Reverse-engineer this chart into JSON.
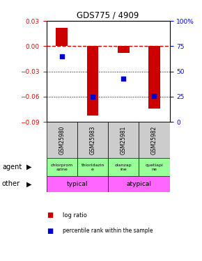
{
  "title": "GDS775 / 4909",
  "samples": [
    "GSM25980",
    "GSM25983",
    "GSM25981",
    "GSM25982"
  ],
  "log_ratios": [
    0.022,
    -0.082,
    -0.008,
    -0.074
  ],
  "percentile_ranks": [
    65,
    25,
    43,
    26
  ],
  "left_ylim": [
    -0.09,
    0.03
  ],
  "right_ylim": [
    0,
    100
  ],
  "left_yticks": [
    -0.09,
    -0.06,
    -0.03,
    0,
    0.03
  ],
  "right_yticks": [
    0,
    25,
    50,
    75,
    100
  ],
  "right_yticklabels": [
    "0",
    "25",
    "50",
    "75",
    "100%"
  ],
  "agent_labels": [
    "chlorprom\nazine",
    "thioridazin\ne",
    "olanzap\nine",
    "quetiapi\nne"
  ],
  "agent_bg": "#99ff99",
  "other_groups": [
    {
      "label": "typical",
      "span": [
        0,
        2
      ],
      "color": "#ff66ff"
    },
    {
      "label": "atypical",
      "span": [
        2,
        4
      ],
      "color": "#ff66ff"
    }
  ],
  "sample_bg": "#cccccc",
  "bar_color": "#cc0000",
  "dot_color": "#0000cc",
  "hline_color": "#cc0000",
  "dot_size": 25
}
